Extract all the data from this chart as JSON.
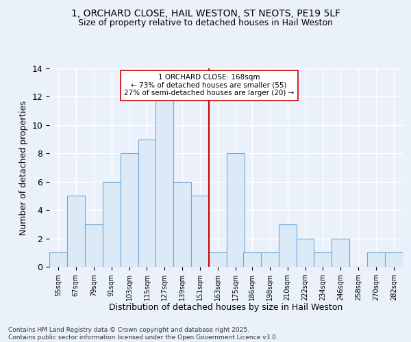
{
  "title1": "1, ORCHARD CLOSE, HAIL WESTON, ST NEOTS, PE19 5LF",
  "title2": "Size of property relative to detached houses in Hail Weston",
  "xlabel": "Distribution of detached houses by size in Hail Weston",
  "ylabel": "Number of detached properties",
  "bins": [
    55,
    67,
    79,
    91,
    103,
    115,
    127,
    139,
    151,
    163,
    175,
    186,
    198,
    210,
    222,
    234,
    246,
    258,
    270,
    282,
    294
  ],
  "counts": [
    1,
    5,
    3,
    6,
    8,
    9,
    12,
    6,
    5,
    1,
    8,
    1,
    1,
    3,
    2,
    1,
    2,
    0,
    1,
    1
  ],
  "bar_facecolor": "#dce9f7",
  "bar_edgecolor": "#6fa8d8",
  "vline_x": 163,
  "vline_color": "#cc0000",
  "annotation_text": "1 ORCHARD CLOSE: 168sqm\n← 73% of detached houses are smaller (55)\n27% of semi-detached houses are larger (20) →",
  "annotation_box_edgecolor": "#cc0000",
  "annotation_box_facecolor": "white",
  "ylim": [
    0,
    14
  ],
  "yticks": [
    0,
    2,
    4,
    6,
    8,
    10,
    12,
    14
  ],
  "bg_color": "#eaf1fb",
  "grid_color": "white",
  "footer": "Contains HM Land Registry data © Crown copyright and database right 2025.\nContains public sector information licensed under the Open Government Licence v3.0."
}
